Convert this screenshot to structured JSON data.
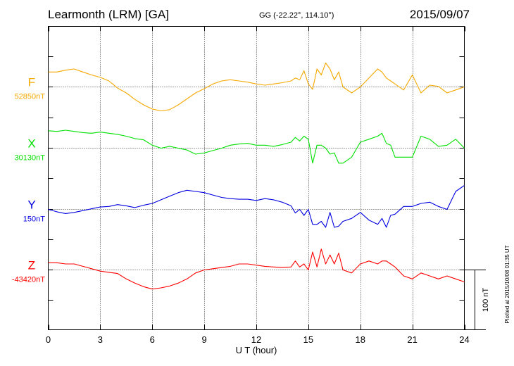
{
  "header": {
    "station": "Learmonth (LRM)  [GA]",
    "coords": "GG (-22.22°, 114.10°)",
    "date": "2015/09/07"
  },
  "footer_note": "Plotted at 2015/10/08 01:35 UT",
  "scale_bar": {
    "label": "100 nT",
    "value_nT": 100
  },
  "chart_data": {
    "type": "line",
    "xlabel": "U T (hour)",
    "xlim": [
      0,
      24
    ],
    "xticks": [
      0,
      3,
      6,
      9,
      12,
      15,
      18,
      21,
      24
    ],
    "x": [
      0,
      0.5,
      1,
      1.5,
      2,
      2.5,
      3,
      3.5,
      4,
      4.5,
      5,
      5.5,
      6,
      6.5,
      7,
      7.5,
      8,
      8.5,
      9,
      9.5,
      10,
      10.5,
      11,
      11.5,
      12,
      12.5,
      13,
      13.5,
      14,
      14.25,
      14.5,
      14.75,
      15,
      15.25,
      15.5,
      15.75,
      16,
      16.25,
      16.5,
      16.75,
      17,
      17.5,
      18,
      18.5,
      19,
      19.25,
      19.5,
      19.75,
      20,
      20.5,
      21,
      21.5,
      22,
      22.5,
      23,
      23.5,
      24
    ],
    "series": [
      {
        "name": "F",
        "baseline_label": "52850nT",
        "color": "#f5a800",
        "values": [
          -25,
          -25,
          -28,
          -30,
          -25,
          -20,
          -16,
          -10,
          2,
          10,
          21,
          30,
          37,
          40,
          38,
          30,
          20,
          10,
          3,
          -5,
          -10,
          -12,
          -10,
          -8,
          -5,
          -3,
          -5,
          -7,
          -10,
          -15,
          -12,
          -27,
          -5,
          4,
          -30,
          -20,
          -40,
          -30,
          -12,
          -25,
          0,
          10,
          0,
          -15,
          -30,
          -25,
          -15,
          -10,
          -5,
          5,
          -20,
          10,
          -3,
          -1,
          10,
          5,
          0
        ]
      },
      {
        "name": "X",
        "baseline_label": "30130nT",
        "color": "#00e000",
        "values": [
          -29,
          -28,
          -30,
          -28,
          -26,
          -25,
          -27,
          -25,
          -23,
          -20,
          -16,
          -14,
          -5,
          0,
          -3,
          0,
          3,
          10,
          8,
          4,
          0,
          -5,
          -7,
          -8,
          -5,
          -5,
          -3,
          -6,
          -10,
          -18,
          -12,
          -20,
          -15,
          25,
          -5,
          -5,
          0,
          10,
          8,
          25,
          25,
          15,
          -10,
          -15,
          -20,
          -25,
          -8,
          -5,
          15,
          15,
          15,
          -20,
          -15,
          -3,
          -5,
          -15,
          0
        ]
      },
      {
        "name": "Y",
        "baseline_label": "150nT",
        "color": "#0000e0",
        "values": [
          0,
          4,
          7,
          5,
          2,
          -1,
          -4,
          -5,
          -8,
          -6,
          -3,
          -7,
          -10,
          -16,
          -22,
          -28,
          -32,
          -30,
          -28,
          -24,
          -20,
          -18,
          -17,
          -17,
          -15,
          -18,
          -16,
          -12,
          -6,
          6,
          0,
          10,
          0,
          25,
          25,
          20,
          30,
          5,
          30,
          28,
          20,
          15,
          5,
          18,
          25,
          15,
          30,
          10,
          8,
          -5,
          -5,
          -10,
          -12,
          -5,
          0,
          -30,
          -40
        ]
      },
      {
        "name": "Z",
        "baseline_label": "-43420nT",
        "color": "#ff0000",
        "values": [
          -12,
          -12,
          -10,
          -10,
          -6,
          -2,
          2,
          4,
          6,
          15,
          22,
          28,
          32,
          30,
          27,
          22,
          15,
          5,
          0,
          -2,
          -4,
          -6,
          -10,
          -10,
          -8,
          -6,
          -5,
          -4,
          -5,
          -15,
          -5,
          -10,
          0,
          -30,
          -5,
          -35,
          -10,
          -25,
          -10,
          -28,
          0,
          5,
          -10,
          -15,
          -10,
          -15,
          -15,
          -10,
          -5,
          10,
          15,
          5,
          10,
          15,
          10,
          15,
          20
        ]
      }
    ],
    "grid": true
  }
}
